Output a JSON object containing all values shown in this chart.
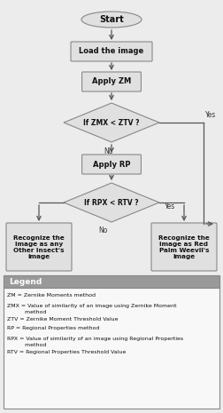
{
  "bg_color": "#ececec",
  "box_fill": "#e0e0e0",
  "box_edge": "#888888",
  "diamond_fill": "#e0e0e0",
  "diamond_edge": "#888888",
  "oval_fill": "#e0e0e0",
  "oval_edge": "#888888",
  "arrow_color": "#555555",
  "legend_header_fill": "#999999",
  "legend_body_fill": "#f8f8f8",
  "legend_border": "#888888",
  "legend_header_text": "Legend",
  "legend_items": [
    "ZM = Zernike Moments method",
    "ZMX = Value of similarity of an image using Zernike Moment\n          method",
    "ZTV = Zernike Moment Threshold Value",
    "RP = Regional Properties method",
    "RPX = Value of similarity of an image using Regional Properties\n          method",
    "RTV = Regional Properties Threshold Value"
  ],
  "start_label": "Start",
  "load_label": "Load the image",
  "applyzm_label": "Apply ZM",
  "ifzmx_label": "If ZMX < ZTV ?",
  "applyrp_label": "Apply RP",
  "ifrpx_label": "If RPX < RTV ?",
  "other_label": "Recognize the\nimage as any\nOther Insect's\nimage",
  "redpalm_label": "Recognize the\nimage as Red\nPalm Weevil's\nimage",
  "yes_label": "Yes",
  "no_label": "No"
}
